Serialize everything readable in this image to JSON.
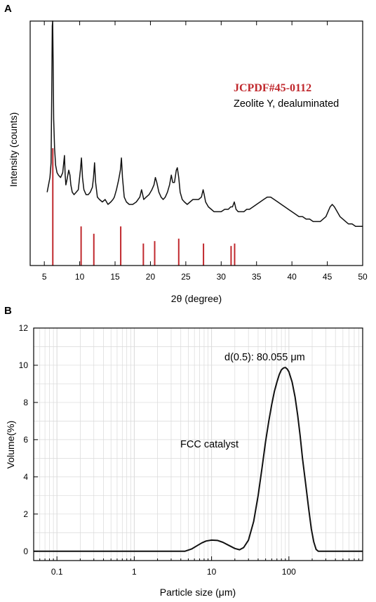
{
  "figure": {
    "panel_a_letter": "A",
    "panel_b_letter": "B"
  },
  "colors": {
    "trace": "#111111",
    "reference_bars": "#c0282d",
    "reference_title": "#c0282d",
    "frame": "#000000",
    "grid": "#d9d9d9"
  },
  "chart_data": [
    {
      "type": "line",
      "panel": "A",
      "xlabel": "2θ (degree)",
      "ylabel": "Intensity (counts)",
      "xlim": [
        3,
        50
      ],
      "ylim": [
        0,
        100
      ],
      "y_ticks_shown": false,
      "xticks": [
        5,
        10,
        15,
        20,
        25,
        30,
        35,
        40,
        45,
        50
      ],
      "x_tick_labels": [
        "5",
        "10",
        "15",
        "20",
        "25",
        "30",
        "35",
        "40",
        "45",
        "50"
      ],
      "reference_title": "JCPDF#45-0112",
      "series_label": "Zeolite Y, dealuminated",
      "series": [
        {
          "name": "Zeolite Y, dealuminated",
          "x": [
            5.4,
            5.6,
            5.8,
            5.95,
            6.05,
            6.12,
            6.18,
            6.24,
            6.32,
            6.45,
            6.6,
            6.8,
            7.0,
            7.3,
            7.6,
            7.85,
            7.95,
            8.05,
            8.2,
            8.45,
            8.62,
            8.75,
            8.95,
            9.2,
            9.5,
            9.8,
            10.1,
            10.25,
            10.4,
            10.6,
            10.9,
            11.2,
            11.5,
            11.8,
            11.95,
            12.1,
            12.25,
            12.5,
            12.8,
            13.2,
            13.6,
            14.0,
            14.4,
            14.7,
            14.9,
            15.2,
            15.5,
            15.75,
            15.9,
            16.05,
            16.3,
            16.6,
            17.0,
            17.5,
            18.0,
            18.5,
            18.75,
            18.9,
            19.05,
            19.4,
            19.8,
            20.2,
            20.5,
            20.7,
            20.9,
            21.2,
            21.5,
            21.8,
            22.1,
            22.4,
            22.7,
            22.95,
            23.15,
            23.4,
            23.65,
            23.8,
            24.0,
            24.2,
            24.5,
            24.8,
            25.2,
            25.6,
            26.0,
            26.4,
            26.8,
            27.2,
            27.45,
            27.6,
            27.8,
            28.2,
            28.6,
            29.0,
            29.5,
            30.0,
            30.5,
            31.0,
            31.35,
            31.6,
            31.85,
            32.1,
            32.4,
            32.8,
            33.2,
            33.6,
            34.0,
            34.5,
            35.0,
            35.5,
            36.0,
            36.5,
            37.0,
            37.5,
            38.0,
            38.5,
            39.0,
            39.5,
            40.0,
            40.5,
            41.0,
            41.5,
            42.0,
            42.5,
            43.0,
            43.5,
            44.0,
            44.4,
            44.8,
            45.1,
            45.4,
            45.7,
            46.0,
            46.4,
            46.8,
            47.2,
            47.6,
            48.0,
            48.5,
            49.0,
            49.5,
            50.0
          ],
          "y": [
            30,
            33,
            36,
            42,
            72,
            98,
            100,
            85,
            60,
            48,
            41,
            38,
            37,
            36,
            38,
            45,
            37,
            33,
            35,
            39,
            37,
            33,
            30,
            29,
            30,
            31,
            39,
            44,
            36,
            31,
            29,
            29,
            30,
            32,
            36,
            42,
            34,
            28,
            27,
            26,
            27,
            25,
            26,
            27,
            28,
            31,
            35,
            39,
            44,
            36,
            28,
            26,
            25,
            25,
            26,
            28,
            31,
            29,
            27,
            28,
            29,
            31,
            33,
            36,
            34,
            30,
            28,
            27,
            28,
            30,
            33,
            37,
            34,
            34,
            39,
            40,
            36,
            30,
            27,
            26,
            25,
            26,
            27,
            27,
            27,
            28,
            31,
            29,
            26,
            24,
            23,
            22,
            22,
            22,
            23,
            23,
            24,
            24,
            26,
            23,
            22,
            22,
            22,
            23,
            23,
            24,
            25,
            26,
            27,
            28,
            28,
            27,
            26,
            25,
            24,
            23,
            22,
            21,
            20,
            20,
            19,
            19,
            18,
            18,
            18,
            19,
            20,
            22,
            24,
            25,
            24,
            22,
            20,
            19,
            18,
            17,
            17,
            16,
            16,
            16
          ]
        }
      ],
      "reference_peaks": {
        "x": [
          6.2,
          10.2,
          12.0,
          15.8,
          19.0,
          20.6,
          24.0,
          27.5,
          31.4,
          31.9
        ],
        "y": [
          48,
          16,
          13,
          16,
          9,
          10,
          11,
          9,
          8,
          9
        ]
      }
    },
    {
      "type": "line",
      "panel": "B",
      "xlabel": "Particle size (μm)",
      "ylabel": "Volume(%)",
      "xscale": "log",
      "xlim": [
        0.05,
        900
      ],
      "ylim": [
        -0.5,
        12
      ],
      "grid": true,
      "xticks": [
        0.1,
        1,
        10,
        100
      ],
      "x_tick_labels": [
        "0.1",
        "1",
        "10",
        "100"
      ],
      "yticks": [
        0,
        2,
        4,
        6,
        8,
        10,
        12
      ],
      "y_tick_labels": [
        "0",
        "2",
        "4",
        "6",
        "8",
        "10",
        "12"
      ],
      "annotations": [
        "d(0.5): 80.055 μm",
        "FCC catalyst"
      ],
      "series": [
        {
          "name": "FCC catalyst",
          "x": [
            0.05,
            1,
            4.5,
            5.5,
            6.5,
            7.5,
            8.5,
            10,
            12,
            14,
            17,
            20,
            23,
            26,
            30,
            35,
            40,
            45,
            50,
            55,
            60,
            65,
            70,
            75,
            80,
            85,
            90,
            95,
            100,
            110,
            120,
            130,
            140,
            150,
            165,
            180,
            195,
            210,
            225,
            240,
            270,
            900
          ],
          "y": [
            0,
            0,
            0,
            0.12,
            0.3,
            0.45,
            0.55,
            0.6,
            0.58,
            0.48,
            0.3,
            0.15,
            0.08,
            0.2,
            0.6,
            1.6,
            3.0,
            4.5,
            5.9,
            7.0,
            7.9,
            8.6,
            9.1,
            9.5,
            9.75,
            9.85,
            9.88,
            9.8,
            9.65,
            9.1,
            8.3,
            7.3,
            6.2,
            5.0,
            3.6,
            2.3,
            1.2,
            0.5,
            0.1,
            0,
            0,
            0
          ]
        }
      ]
    }
  ]
}
